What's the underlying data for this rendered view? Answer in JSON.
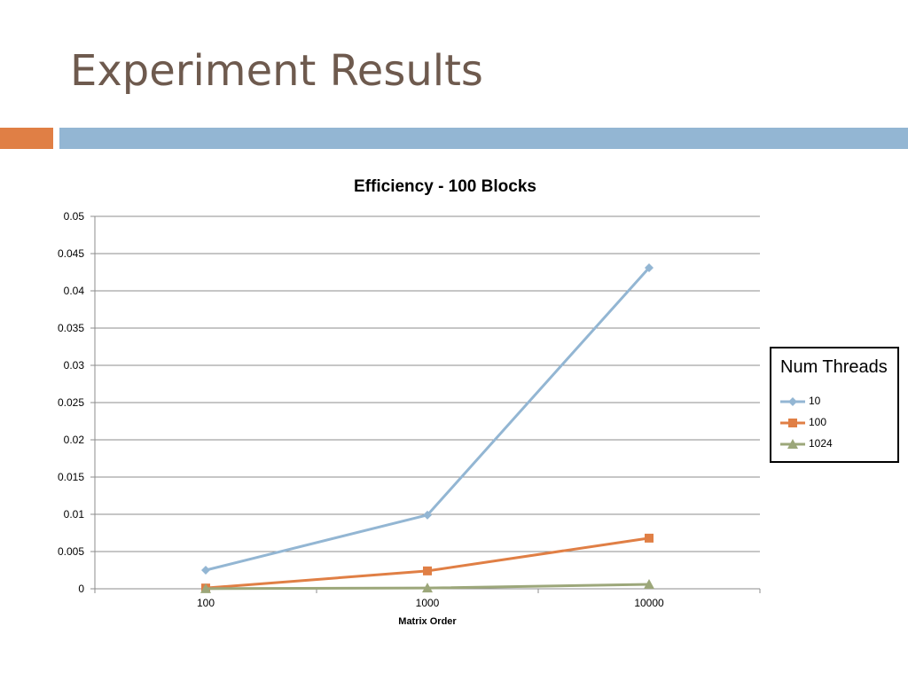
{
  "slide": {
    "title": "Experiment Results"
  },
  "colors": {
    "title": "#6e5a4e",
    "accent_bar": "#e07f45",
    "main_bar": "#93b6d3",
    "grid": "#8c8c8c"
  },
  "chart_data": {
    "type": "line",
    "title": "Efficiency - 100 Blocks",
    "xlabel": "Matrix Order",
    "ylabel": "",
    "categories": [
      "100",
      "1000",
      "10000"
    ],
    "ylim": [
      0,
      0.05
    ],
    "yticks": [
      "0",
      "0.005",
      "0.01",
      "0.015",
      "0.02",
      "0.025",
      "0.03",
      "0.035",
      "0.04",
      "0.045",
      "0.05"
    ],
    "grid": true,
    "legend": {
      "title": "Num Threads",
      "placement": "right"
    },
    "series": [
      {
        "name": "10",
        "values": [
          0.0025,
          0.0099,
          0.0431
        ],
        "color": "#93b6d3",
        "marker": "diamond"
      },
      {
        "name": "100",
        "values": [
          0.0001,
          0.0024,
          0.0068
        ],
        "color": "#e07f45",
        "marker": "square"
      },
      {
        "name": "1024",
        "values": [
          2e-05,
          0.0001,
          0.0006
        ],
        "color": "#9ca77a",
        "marker": "triangle"
      }
    ]
  }
}
